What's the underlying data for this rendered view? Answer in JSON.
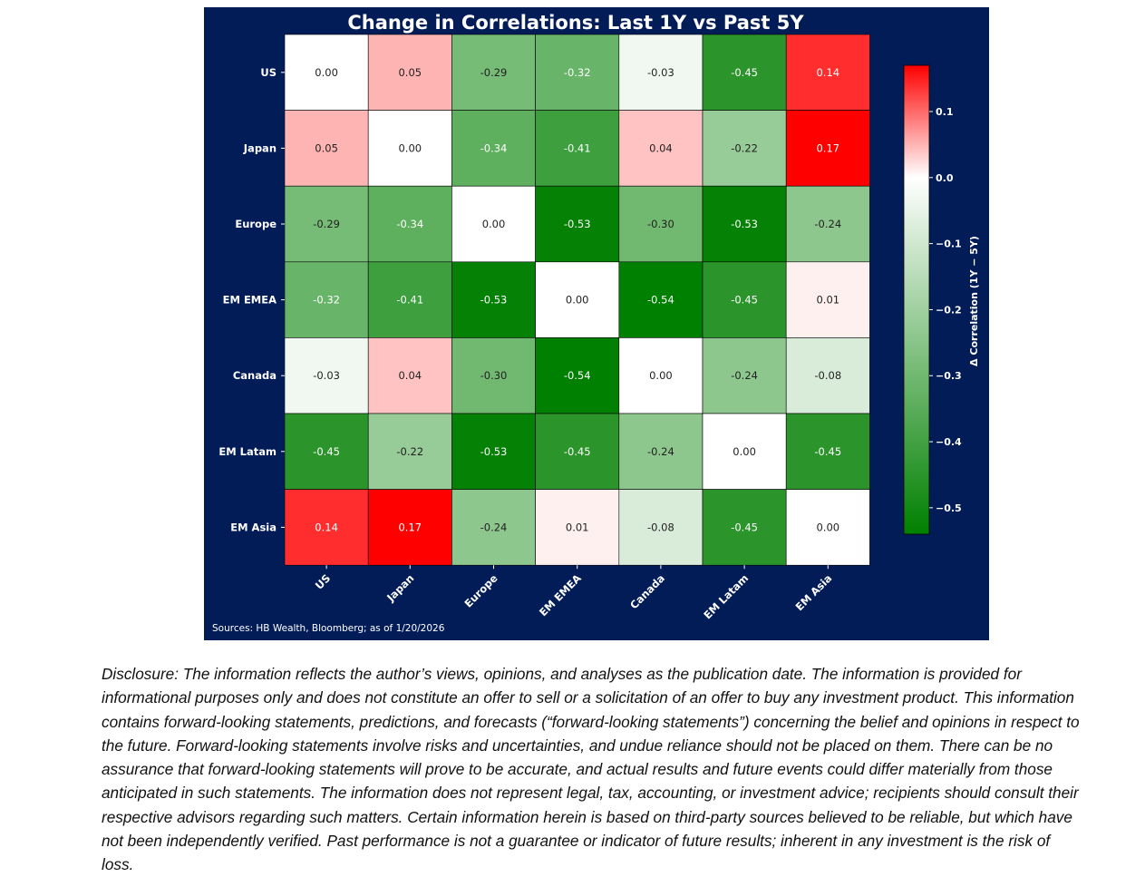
{
  "chart_data": {
    "type": "heatmap",
    "title": "Change in Correlations: Last 1Y vs Past 5Y",
    "row_labels": [
      "US",
      "Japan",
      "Europe",
      "EM EMEA",
      "Canada",
      "EM Latam",
      "EM Asia"
    ],
    "col_labels": [
      "US",
      "Japan",
      "Europe",
      "EM EMEA",
      "Canada",
      "EM Latam",
      "EM Asia"
    ],
    "values": [
      [
        0.0,
        0.05,
        -0.29,
        -0.32,
        -0.03,
        -0.45,
        0.14
      ],
      [
        0.05,
        0.0,
        -0.34,
        -0.41,
        0.04,
        -0.22,
        0.17
      ],
      [
        -0.29,
        -0.34,
        0.0,
        -0.53,
        -0.3,
        -0.53,
        -0.24
      ],
      [
        -0.32,
        -0.41,
        -0.53,
        0.0,
        -0.54,
        -0.45,
        0.01
      ],
      [
        -0.03,
        0.04,
        -0.3,
        -0.54,
        0.0,
        -0.24,
        -0.08
      ],
      [
        -0.45,
        -0.22,
        -0.53,
        -0.45,
        -0.24,
        0.0,
        -0.45
      ],
      [
        0.14,
        0.17,
        -0.24,
        0.01,
        -0.08,
        -0.45,
        0.0
      ]
    ],
    "value_format": "2 decimals",
    "colorbar": {
      "label": "Δ Correlation (1Y − 5Y)",
      "vmin": -0.54,
      "vmax": 0.17,
      "ticks": [
        0.1,
        0.0,
        -0.1,
        -0.2,
        -0.3,
        -0.4,
        -0.5
      ],
      "tick_labels": [
        "0.1",
        "0.0",
        "−0.1",
        "−0.2",
        "−0.3",
        "−0.4",
        "−0.5"
      ],
      "colors": {
        "negative": "#008000",
        "center": "#ffffff",
        "positive": "#ff0000"
      }
    },
    "source": "Sources: HB Wealth, Bloomberg; as of 1/20/2026"
  },
  "colors": {
    "background": "#021c58",
    "text": "#ffffff",
    "cell_border": "#000000"
  },
  "disclosure": "Disclosure: The information reflects the author’s views, opinions, and analyses as the publication date. The information is provided for informational purposes only and does not constitute an offer to sell or a solicitation of an offer to buy any investment product. This information contains forward-looking statements, predictions, and forecasts (“forward-looking statements”) concerning the belief and opinions in respect to the future. Forward-looking statements involve risks and uncertainties, and undue reliance should not be placed on them. There can be no assurance that forward-looking statements will prove to be accurate, and actual results and future events could differ materially from those anticipated in such statements. The information does not represent legal, tax, accounting, or investment advice; recipients should consult their respective advisors regarding such matters. Certain information herein is based on third-party sources believed to be reliable, but which have not been independently verified. Past performance is not a guarantee or indicator of future results; inherent in any investment is the risk of loss."
}
